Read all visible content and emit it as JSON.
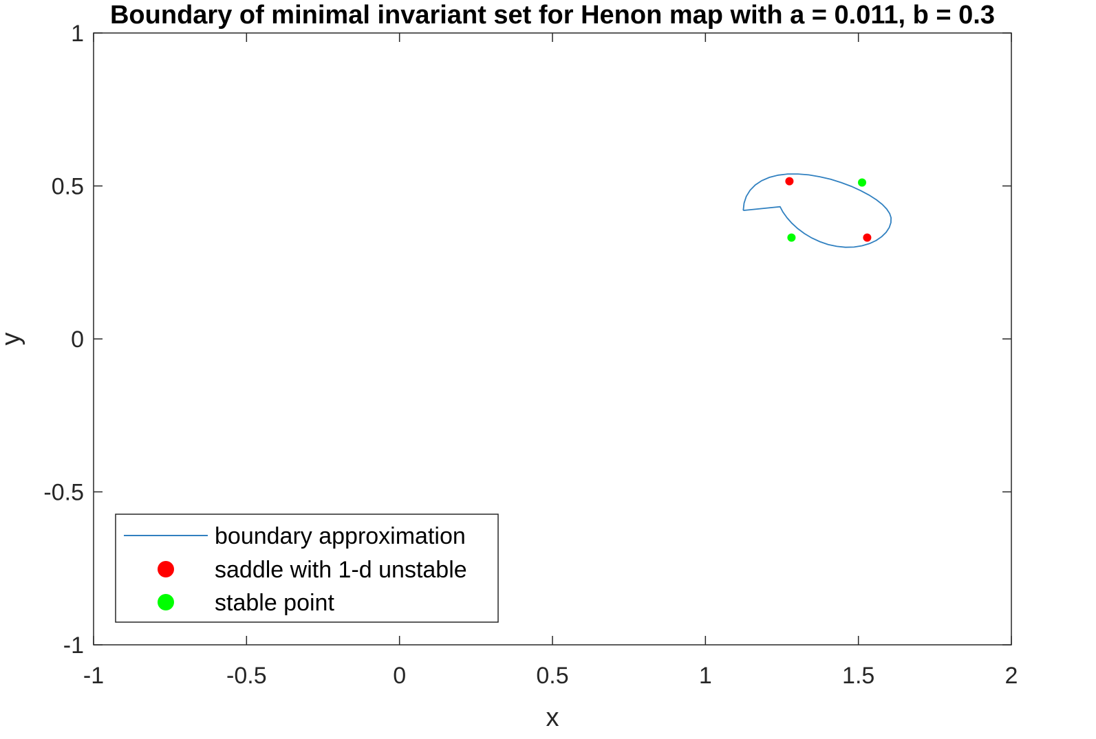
{
  "chart_data": {
    "type": "line",
    "title": "Boundary of minimal invariant set for Henon map with a = 0.011, b = 0.3",
    "xlabel": "x",
    "ylabel": "y",
    "xlim": [
      -1,
      2
    ],
    "ylim": [
      -1,
      1
    ],
    "xticks": [
      -1,
      -0.5,
      0,
      0.5,
      1,
      1.5,
      2
    ],
    "yticks": [
      -1,
      -0.5,
      0,
      0.5,
      1
    ],
    "xtick_labels": [
      "-1",
      "-0.5",
      "0",
      "0.5",
      "1",
      "1.5",
      "2"
    ],
    "ytick_labels": [
      "-1",
      "-0.5",
      "0",
      "0.5",
      "1"
    ],
    "grid": false,
    "legend_position": "bottom-left",
    "series": [
      {
        "name": "boundary approximation",
        "kind": "line",
        "color": "#3080c0",
        "x": [
          1.1237,
          1.1262,
          1.1336,
          1.1459,
          1.1628,
          1.184,
          1.2091,
          1.2377,
          1.2692,
          1.3028,
          1.3379,
          1.3737,
          1.4094,
          1.4441,
          1.4771,
          1.5076,
          1.535,
          1.5586,
          1.5779,
          1.5925,
          1.6022,
          1.6067,
          1.6062,
          1.6008,
          1.5907,
          1.5763,
          1.558,
          1.5364,
          1.5121,
          1.4857,
          1.4579,
          1.4295,
          1.4012,
          1.3736,
          1.3474,
          1.3231,
          1.3012,
          1.2821,
          1.2661,
          1.2533,
          1.244,
          1.1237
        ],
        "y": [
          0.42,
          0.4438,
          0.4659,
          0.4859,
          0.5032,
          0.5173,
          0.5281,
          0.5353,
          0.539,
          0.5392,
          0.5362,
          0.5302,
          0.5217,
          0.511,
          0.4986,
          0.4848,
          0.4702,
          0.455,
          0.4397,
          0.4246,
          0.41,
          0.3962,
          0.3802,
          0.3641,
          0.3486,
          0.3343,
          0.3219,
          0.3117,
          0.3044,
          0.3003,
          0.2996,
          0.3024,
          0.3086,
          0.318,
          0.3302,
          0.3447,
          0.361,
          0.3785,
          0.3966,
          0.4147,
          0.4322,
          0.42
        ]
      },
      {
        "name": "saddle with 1-d unstable",
        "kind": "scatter",
        "color": "#ff0000",
        "x": [
          1.2746,
          1.5286
        ],
        "y": [
          0.5156,
          0.3312
        ]
      },
      {
        "name": "stable point",
        "kind": "scatter",
        "color": "#00ff00",
        "x": [
          1.5119,
          1.2813
        ],
        "y": [
          0.5112,
          0.3312
        ]
      }
    ]
  }
}
